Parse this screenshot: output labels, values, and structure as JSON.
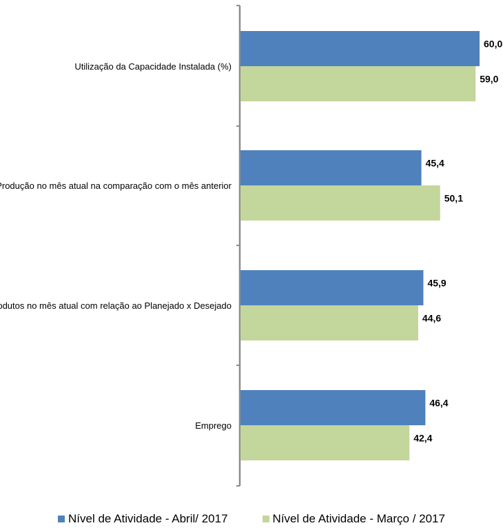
{
  "chart_data": {
    "type": "bar",
    "orientation": "horizontal",
    "categories": [
      "Utilização da Capacidade Instalada (%)",
      "Produção no mês atual na comparação com o mês anterior",
      "Estoque de produtos no mês atual com relação ao Planejado x Desejado",
      "Emprego"
    ],
    "series": [
      {
        "name": "Nível de Atividade - Abril/ 2017",
        "color": "#4f81bd",
        "values": [
          60.0,
          45.4,
          45.9,
          46.4
        ]
      },
      {
        "name": "Nível de Atividade - Março / 2017",
        "color": "#c3d69b",
        "values": [
          59.0,
          50.1,
          44.6,
          42.4
        ]
      }
    ],
    "value_labels": [
      [
        "60,0",
        "45,4",
        "45,9",
        "46,4"
      ],
      [
        "59,0",
        "50,1",
        "44,6",
        "42,4"
      ]
    ],
    "xlim": [
      0,
      60
    ],
    "grid": false,
    "legend_position": "bottom"
  }
}
